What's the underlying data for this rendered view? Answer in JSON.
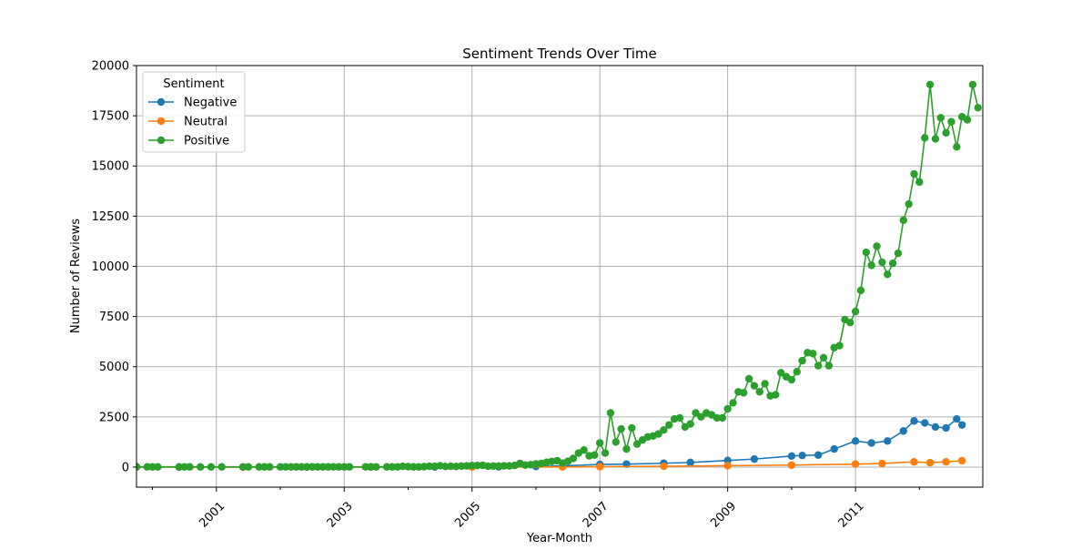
{
  "chart_data": {
    "type": "line",
    "title": "Sentiment Trends Over Time",
    "xlabel": "Year-Month",
    "ylabel": "Number of Reviews",
    "x_range": [
      "1999-10",
      "2012-09"
    ],
    "ylim": [
      -1000,
      20000
    ],
    "x_ticks": [
      "2001",
      "2003",
      "2005",
      "2007",
      "2009",
      "2011"
    ],
    "y_ticks": [
      "0",
      "2500",
      "5000",
      "7500",
      "10000",
      "12500",
      "15000",
      "17500",
      "20000"
    ],
    "grid": true,
    "legend": {
      "title": "Sentiment",
      "placement": "top-left"
    },
    "series": [
      {
        "name": "Negative",
        "color": "#1f77b4",
        "points": [
          [
            "1999-10",
            0
          ],
          [
            "2000-06",
            0
          ],
          [
            "2001-06",
            0
          ],
          [
            "2002-06",
            0
          ],
          [
            "2003-06",
            0
          ],
          [
            "2004-06",
            5
          ],
          [
            "2005-01",
            10
          ],
          [
            "2005-06",
            15
          ],
          [
            "2006-01",
            30
          ],
          [
            "2006-06",
            60
          ],
          [
            "2007-01",
            130
          ],
          [
            "2007-06",
            150
          ],
          [
            "2008-01",
            190
          ],
          [
            "2008-06",
            230
          ],
          [
            "2009-01",
            330
          ],
          [
            "2009-06",
            400
          ],
          [
            "2010-01",
            550
          ],
          [
            "2010-03",
            580
          ],
          [
            "2010-06",
            600
          ],
          [
            "2010-09",
            900
          ],
          [
            "2011-01",
            1300
          ],
          [
            "2011-04",
            1200
          ],
          [
            "2011-07",
            1300
          ],
          [
            "2011-10",
            1800
          ],
          [
            "2011-12",
            2300
          ],
          [
            "2012-02",
            2200
          ],
          [
            "2012-04",
            2000
          ],
          [
            "2012-06",
            1950
          ],
          [
            "2012-08",
            2400
          ],
          [
            "2012-09",
            2100
          ]
        ]
      },
      {
        "name": "Neutral",
        "color": "#ff7f0e",
        "points": [
          [
            "1999-10",
            0
          ],
          [
            "2001-06",
            0
          ],
          [
            "2003-06",
            0
          ],
          [
            "2005-01",
            0
          ],
          [
            "2006-06",
            5
          ],
          [
            "2007-01",
            20
          ],
          [
            "2008-01",
            40
          ],
          [
            "2009-01",
            70
          ],
          [
            "2010-01",
            100
          ],
          [
            "2011-01",
            150
          ],
          [
            "2011-06",
            180
          ],
          [
            "2011-12",
            260
          ],
          [
            "2012-03",
            220
          ],
          [
            "2012-06",
            260
          ],
          [
            "2012-09",
            320
          ]
        ]
      },
      {
        "name": "Positive",
        "color": "#2ca02c",
        "points": [
          [
            "1999-10",
            20
          ],
          [
            "1999-12",
            10
          ],
          [
            "2000-01",
            10
          ],
          [
            "2000-02",
            10
          ],
          [
            "2000-06",
            10
          ],
          [
            "2000-07",
            10
          ],
          [
            "2000-08",
            10
          ],
          [
            "2000-10",
            10
          ],
          [
            "2000-12",
            10
          ],
          [
            "2001-02",
            10
          ],
          [
            "2001-06",
            10
          ],
          [
            "2001-07",
            10
          ],
          [
            "2001-09",
            10
          ],
          [
            "2001-10",
            10
          ],
          [
            "2001-11",
            10
          ],
          [
            "2002-01",
            10
          ],
          [
            "2002-02",
            10
          ],
          [
            "2002-03",
            10
          ],
          [
            "2002-04",
            10
          ],
          [
            "2002-05",
            10
          ],
          [
            "2002-06",
            10
          ],
          [
            "2002-07",
            10
          ],
          [
            "2002-08",
            10
          ],
          [
            "2002-09",
            10
          ],
          [
            "2002-10",
            10
          ],
          [
            "2002-11",
            10
          ],
          [
            "2002-12",
            10
          ],
          [
            "2003-01",
            10
          ],
          [
            "2003-02",
            10
          ],
          [
            "2003-05",
            10
          ],
          [
            "2003-06",
            10
          ],
          [
            "2003-07",
            10
          ],
          [
            "2003-09",
            10
          ],
          [
            "2003-10",
            10
          ],
          [
            "2003-11",
            10
          ],
          [
            "2003-12",
            40
          ],
          [
            "2004-01",
            20
          ],
          [
            "2004-02",
            10
          ],
          [
            "2004-03",
            10
          ],
          [
            "2004-04",
            20
          ],
          [
            "2004-05",
            40
          ],
          [
            "2004-06",
            40
          ],
          [
            "2004-07",
            70
          ],
          [
            "2004-08",
            30
          ],
          [
            "2004-09",
            40
          ],
          [
            "2004-10",
            30
          ],
          [
            "2004-11",
            50
          ],
          [
            "2004-12",
            60
          ],
          [
            "2005-01",
            80
          ],
          [
            "2005-02",
            80
          ],
          [
            "2005-03",
            90
          ],
          [
            "2005-04",
            40
          ],
          [
            "2005-05",
            50
          ],
          [
            "2005-06",
            50
          ],
          [
            "2005-07",
            60
          ],
          [
            "2005-08",
            60
          ],
          [
            "2005-09",
            80
          ],
          [
            "2005-10",
            180
          ],
          [
            "2005-11",
            100
          ],
          [
            "2005-12",
            120
          ],
          [
            "2006-01",
            160
          ],
          [
            "2006-02",
            180
          ],
          [
            "2006-03",
            240
          ],
          [
            "2006-04",
            280
          ],
          [
            "2006-05",
            320
          ],
          [
            "2006-06",
            200
          ],
          [
            "2006-07",
            290
          ],
          [
            "2006-08",
            430
          ],
          [
            "2006-09",
            700
          ],
          [
            "2006-10",
            850
          ],
          [
            "2006-11",
            560
          ],
          [
            "2006-12",
            600
          ],
          [
            "2007-01",
            1200
          ],
          [
            "2007-02",
            700
          ],
          [
            "2007-03",
            2700
          ],
          [
            "2007-04",
            1250
          ],
          [
            "2007-05",
            1900
          ],
          [
            "2007-06",
            900
          ],
          [
            "2007-07",
            1950
          ],
          [
            "2007-08",
            1150
          ],
          [
            "2007-09",
            1350
          ],
          [
            "2007-10",
            1500
          ],
          [
            "2007-11",
            1550
          ],
          [
            "2007-12",
            1650
          ],
          [
            "2008-01",
            1850
          ],
          [
            "2008-02",
            2100
          ],
          [
            "2008-03",
            2400
          ],
          [
            "2008-04",
            2450
          ],
          [
            "2008-05",
            2000
          ],
          [
            "2008-06",
            2150
          ],
          [
            "2008-07",
            2700
          ],
          [
            "2008-08",
            2500
          ],
          [
            "2008-09",
            2700
          ],
          [
            "2008-10",
            2600
          ],
          [
            "2008-11",
            2450
          ],
          [
            "2008-12",
            2450
          ],
          [
            "2009-01",
            2900
          ],
          [
            "2009-02",
            3200
          ],
          [
            "2009-03",
            3750
          ],
          [
            "2009-04",
            3700
          ],
          [
            "2009-05",
            4400
          ],
          [
            "2009-06",
            4050
          ],
          [
            "2009-07",
            3750
          ],
          [
            "2009-08",
            4150
          ],
          [
            "2009-09",
            3550
          ],
          [
            "2009-10",
            3600
          ],
          [
            "2009-11",
            4700
          ],
          [
            "2009-12",
            4500
          ],
          [
            "2010-01",
            4350
          ],
          [
            "2010-02",
            4750
          ],
          [
            "2010-03",
            5300
          ],
          [
            "2010-04",
            5700
          ],
          [
            "2010-05",
            5650
          ],
          [
            "2010-06",
            5050
          ],
          [
            "2010-07",
            5450
          ],
          [
            "2010-08",
            5050
          ],
          [
            "2010-09",
            5950
          ],
          [
            "2010-10",
            6050
          ],
          [
            "2010-11",
            7350
          ],
          [
            "2010-12",
            7200
          ],
          [
            "2011-01",
            7750
          ],
          [
            "2011-02",
            8800
          ],
          [
            "2011-03",
            10700
          ],
          [
            "2011-04",
            10050
          ],
          [
            "2011-05",
            11000
          ],
          [
            "2011-06",
            10200
          ],
          [
            "2011-07",
            9600
          ],
          [
            "2011-08",
            10150
          ],
          [
            "2011-09",
            10650
          ],
          [
            "2011-10",
            12300
          ],
          [
            "2011-11",
            13100
          ],
          [
            "2011-12",
            14600
          ],
          [
            "2012-01",
            14200
          ],
          [
            "2012-02",
            16400
          ],
          [
            "2012-03",
            19050
          ],
          [
            "2012-04",
            16350
          ],
          [
            "2012-05",
            17400
          ],
          [
            "2012-06",
            16650
          ],
          [
            "2012-07",
            17200
          ],
          [
            "2012-08",
            15950
          ],
          [
            "2012-09",
            17450
          ],
          [
            "2012-10",
            17300
          ],
          [
            "2012-11",
            19050
          ],
          [
            "2012-12",
            17900
          ]
        ]
      }
    ]
  }
}
